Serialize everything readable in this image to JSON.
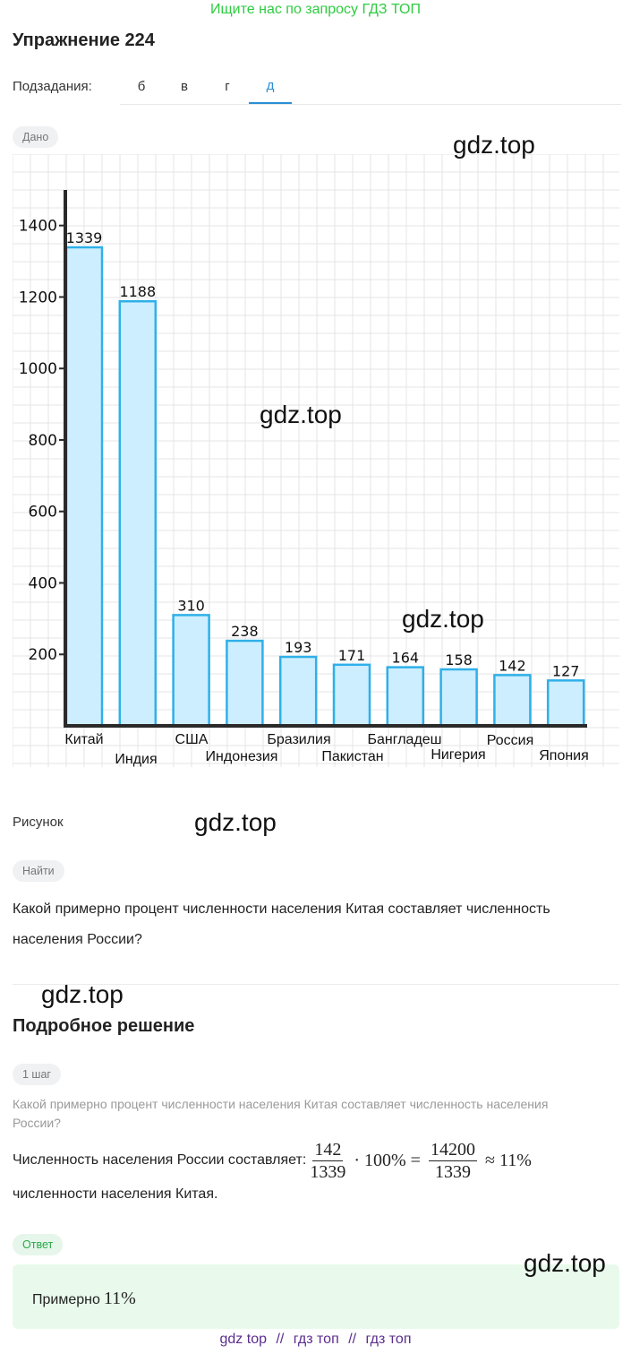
{
  "banner": "Ищите нас по запросу ГДЗ ТОП",
  "exercise_title": "Упражнение 224",
  "subtasks": {
    "label": "Подзадания:",
    "tabs": [
      "б",
      "в",
      "г",
      "д"
    ],
    "active": "д"
  },
  "given_label": "Дано",
  "figure_caption": "Рисунок",
  "find_label": "Найти",
  "question": "Какой примерно процент численности населения Китая составляет численность населения России?",
  "solution": {
    "title": "Подробное решение",
    "step_label": "1 шаг",
    "step_question": "Какой примерно процент численности населения Китая составляет численность населения России?",
    "line1_text": "Численность населения России составляет:",
    "frac1_num": "142",
    "frac1_den": "1339",
    "times": "·",
    "percent": "100%",
    "equals": "=",
    "frac2_num": "14200",
    "frac2_den": "1339",
    "approx": "≈",
    "result": "11%",
    "line2_text": "численности населения Китая."
  },
  "answer": {
    "label": "Ответ",
    "text": "Примерно",
    "value": "11%"
  },
  "watermarks": [
    "gdz.top",
    "gdz.top",
    "gdz.top",
    "gdz.top",
    "gdz.top",
    "gdz.top"
  ],
  "footer": {
    "links": [
      "gdz top",
      "гдз топ",
      "гдз топ"
    ],
    "separator": "//"
  },
  "colors": {
    "bar_fill": "#cdeeff",
    "bar_stroke": "#2fb0e8",
    "axis": "#2a2a2a",
    "grid": "#e4e4e4",
    "accent": "#2a8fd6",
    "banner": "#2ecc40"
  },
  "chart_data": {
    "type": "bar",
    "title": "",
    "xlabel": "",
    "ylabel": "",
    "ylim": [
      0,
      1500
    ],
    "yticks": [
      200,
      400,
      600,
      800,
      1000,
      1200,
      1400
    ],
    "grid": true,
    "categories": [
      "Китай",
      "Индия",
      "США",
      "Индонезия",
      "Бразилия",
      "Пакистан",
      "Бангладеш",
      "Нигерия",
      "Россия",
      "Япония"
    ],
    "values": [
      1339,
      1188,
      310,
      238,
      193,
      171,
      164,
      158,
      142,
      127
    ],
    "data_labels": [
      "1339",
      "1188",
      "310",
      "238",
      "193",
      "171",
      "164",
      "158",
      "142",
      "127"
    ]
  }
}
